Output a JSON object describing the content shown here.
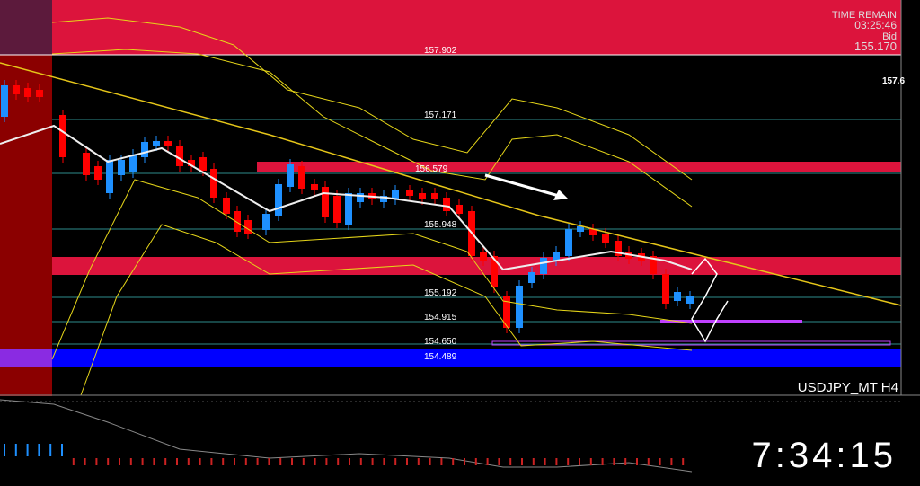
{
  "header": {
    "time_remain_label": "TIME REMAIN",
    "time_remain": "03:25:46",
    "bid_label": "Bid",
    "bid": "155.170",
    "axis_price": "157.6"
  },
  "levels": [
    "157.902",
    "157.171",
    "156.579",
    "155.948",
    "155.192",
    "154.915",
    "154.650",
    "154.489"
  ],
  "symbol": "USDJPY_MT H4",
  "clock": "7:34:15"
}
